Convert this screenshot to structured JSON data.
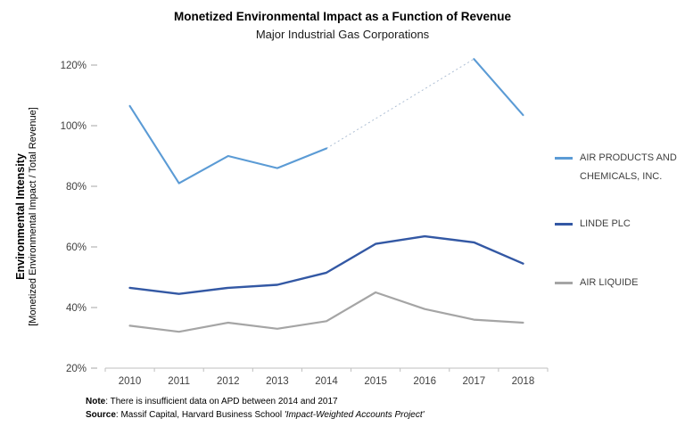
{
  "header": {
    "title": "Monetized Environmental Impact as a Function of Revenue",
    "subtitle": "Major Industrial Gas Corporations"
  },
  "y_axis_title": {
    "main": "Environmental Intensity",
    "sub": "[Monetized Environmental Impact / Total Revenue]"
  },
  "footnotes": {
    "note_label": "Note",
    "note_rest": ": There is insufficient data on APD between 2014 and 2017",
    "source_label": "Source",
    "source_rest": ": Massif Capital, Harvard Business School ",
    "source_project": "'Impact-Weighted Accounts Project'"
  },
  "chart_data": {
    "type": "line",
    "title": "Monetized Environmental Impact as a Function of Revenue",
    "subtitle": "Major Industrial Gas Corporations",
    "xlabel": "",
    "ylabel": "Environmental Intensity [Monetized Environmental Impact / Total Revenue]",
    "categories": [
      "2010",
      "2011",
      "2012",
      "2013",
      "2014",
      "2015",
      "2016",
      "2017",
      "2018"
    ],
    "ylim": [
      20,
      120
    ],
    "y_ticks": [
      {
        "value": 20,
        "label": "20%"
      },
      {
        "value": 40,
        "label": "40%"
      },
      {
        "value": 60,
        "label": "60%"
      },
      {
        "value": 80,
        "label": "80%"
      },
      {
        "value": 100,
        "label": "100%"
      },
      {
        "value": 120,
        "label": "120%"
      }
    ],
    "grid": false,
    "legend_position": "right",
    "series": [
      {
        "name": "AIR PRODUCTS AND CHEMICALS, INC.",
        "color": "#5B9BD5",
        "width": 2.1,
        "values": [
          106.5,
          81,
          90,
          86,
          92.5,
          null,
          null,
          122,
          103.5
        ],
        "gap": {
          "style": "dotted",
          "color": "#AEBFD4",
          "dash": "2 3",
          "width": 1
        }
      },
      {
        "name": "LINDE PLC",
        "color": "#3358A4",
        "width": 2.4,
        "values": [
          46.5,
          44.5,
          46.5,
          47.5,
          51.5,
          61,
          63.5,
          61.5,
          54.5
        ]
      },
      {
        "name": "AIR LIQUIDE",
        "color": "#A5A5A5",
        "width": 2.2,
        "values": [
          34,
          32,
          35,
          33,
          35.5,
          45,
          39.5,
          36,
          35
        ]
      }
    ]
  }
}
